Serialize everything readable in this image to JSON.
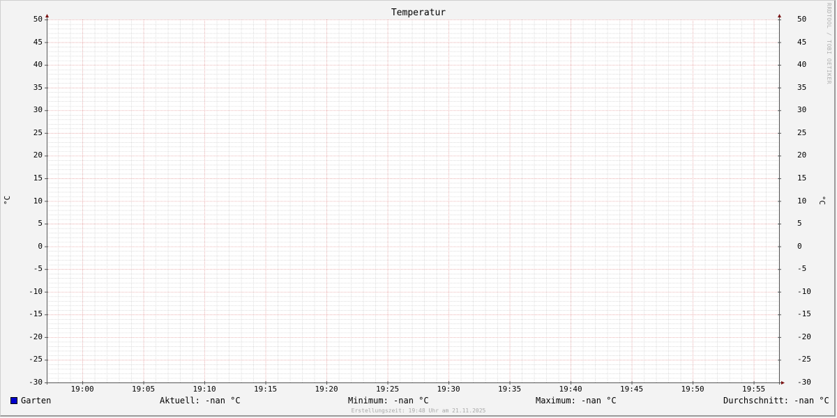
{
  "chart_data": {
    "type": "line",
    "title": "Temperatur",
    "ylabel": "°C",
    "ylabel_right": "°C",
    "ylim": [
      -30,
      50
    ],
    "yticks": [
      50,
      45,
      40,
      35,
      30,
      25,
      20,
      15,
      10,
      5,
      0,
      -5,
      -10,
      -15,
      -20,
      -25,
      -30
    ],
    "xlim": [
      "18:57",
      "19:57"
    ],
    "xticks": [
      "19:00",
      "19:05",
      "19:10",
      "19:15",
      "19:20",
      "19:25",
      "19:30",
      "19:35",
      "19:40",
      "19:45",
      "19:50",
      "19:55"
    ],
    "grid": true,
    "legend_placement": "bottom",
    "series": [
      {
        "name": "Garten",
        "color": "#0000cc",
        "values": []
      }
    ]
  },
  "legend": {
    "name": "Garten",
    "current": "Aktuell: -nan °C",
    "minimum": "Minimum: -nan °C",
    "maximum": "Maximum: -nan °C",
    "average": "Durchschnitt: -nan °C"
  },
  "footer": "Erstellungszeit: 19:48 Uhr am 21.11.2025",
  "watermark": "RRDTOOL / TOBI OETIKER",
  "colors": {
    "major_grid": "#e6a0a0",
    "minor_grid": "#c8c8c8",
    "axis": "#7a1010",
    "plot_bg": "#ffffff"
  }
}
